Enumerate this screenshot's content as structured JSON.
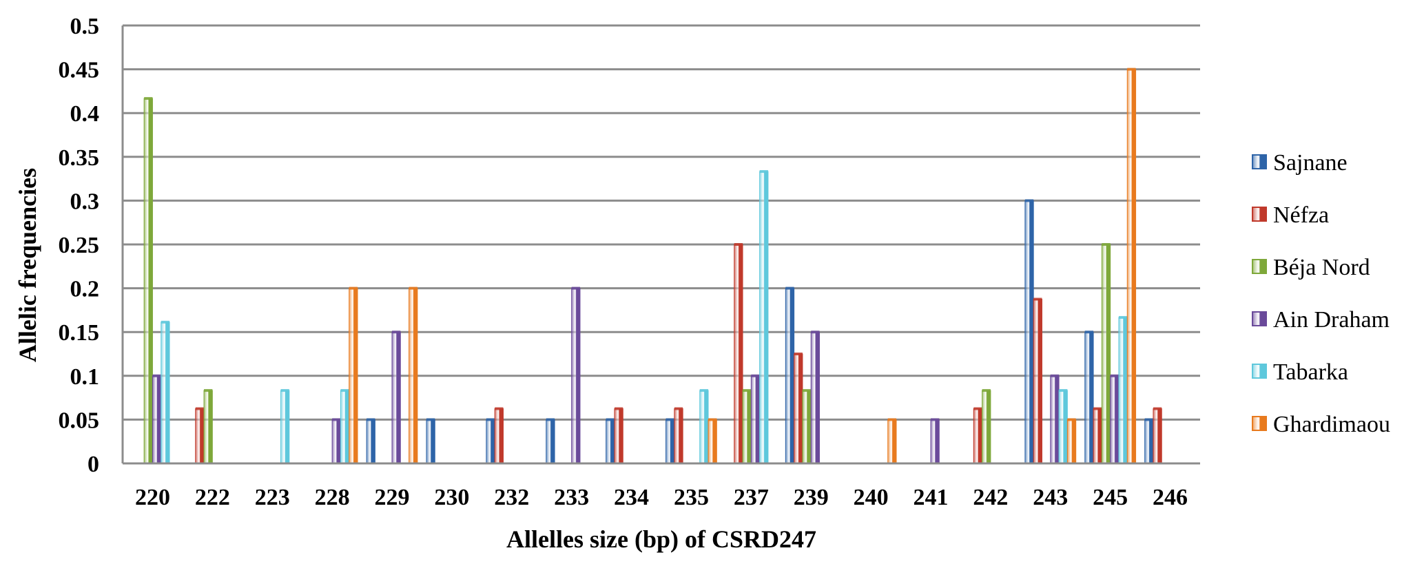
{
  "chart_data": {
    "type": "bar",
    "title": "",
    "xlabel": "Allelles size (bp)  of CSRD247",
    "ylabel": "Allelic frequencies",
    "ylim": [
      0,
      0.5
    ],
    "yticks": [
      "0",
      "0.05",
      "0.1",
      "0.15",
      "0.2",
      "0.25",
      "0.3",
      "0.35",
      "0.4",
      "0.45",
      "0.5"
    ],
    "grid": "horizontal",
    "legend_position": "right",
    "categories": [
      "220",
      "222",
      "223",
      "228",
      "229",
      "230",
      "232",
      "233",
      "234",
      "235",
      "237",
      "239",
      "240",
      "241",
      "242",
      "243",
      "245",
      "246"
    ],
    "series": [
      {
        "name": "Sajnane",
        "color": "#2e64a8",
        "values": [
          0,
          0,
          0,
          0,
          0.05,
          0.05,
          0.05,
          0.05,
          0.05,
          0.05,
          0,
          0.2,
          0,
          0,
          0,
          0.3,
          0.15,
          0.05
        ]
      },
      {
        "name": "Néfza",
        "color": "#c0392b",
        "values": [
          0,
          0.0625,
          0,
          0,
          0,
          0,
          0.0625,
          0,
          0.0625,
          0.0625,
          0.25,
          0.125,
          0,
          0,
          0.0625,
          0.1875,
          0.0625,
          0.0625
        ]
      },
      {
        "name": "Béja Nord",
        "color": "#7ea83a",
        "values": [
          0.4167,
          0.0833,
          0,
          0,
          0,
          0,
          0,
          0,
          0,
          0,
          0.0833,
          0.0833,
          0,
          0,
          0.0833,
          0,
          0.25,
          0
        ]
      },
      {
        "name": "Ain Draham",
        "color": "#6a4a9a",
        "values": [
          0.1,
          0,
          0,
          0.05,
          0.15,
          0,
          0,
          0.2,
          0,
          0,
          0.1,
          0.15,
          0,
          0.05,
          0,
          0.1,
          0.1,
          0
        ]
      },
      {
        "name": "Tabarka",
        "color": "#5ec8dc",
        "values": [
          0.1613,
          0,
          0.0833,
          0.0833,
          0,
          0,
          0,
          0,
          0,
          0.0833,
          0.3333,
          0,
          0,
          0,
          0,
          0.0833,
          0.1667,
          0
        ]
      },
      {
        "name": "Ghardimaou",
        "color": "#e87a1e",
        "values": [
          0,
          0,
          0,
          0.2,
          0.2,
          0,
          0,
          0,
          0,
          0.05,
          0,
          0,
          0.05,
          0,
          0,
          0.05,
          0.45,
          0
        ]
      }
    ]
  }
}
